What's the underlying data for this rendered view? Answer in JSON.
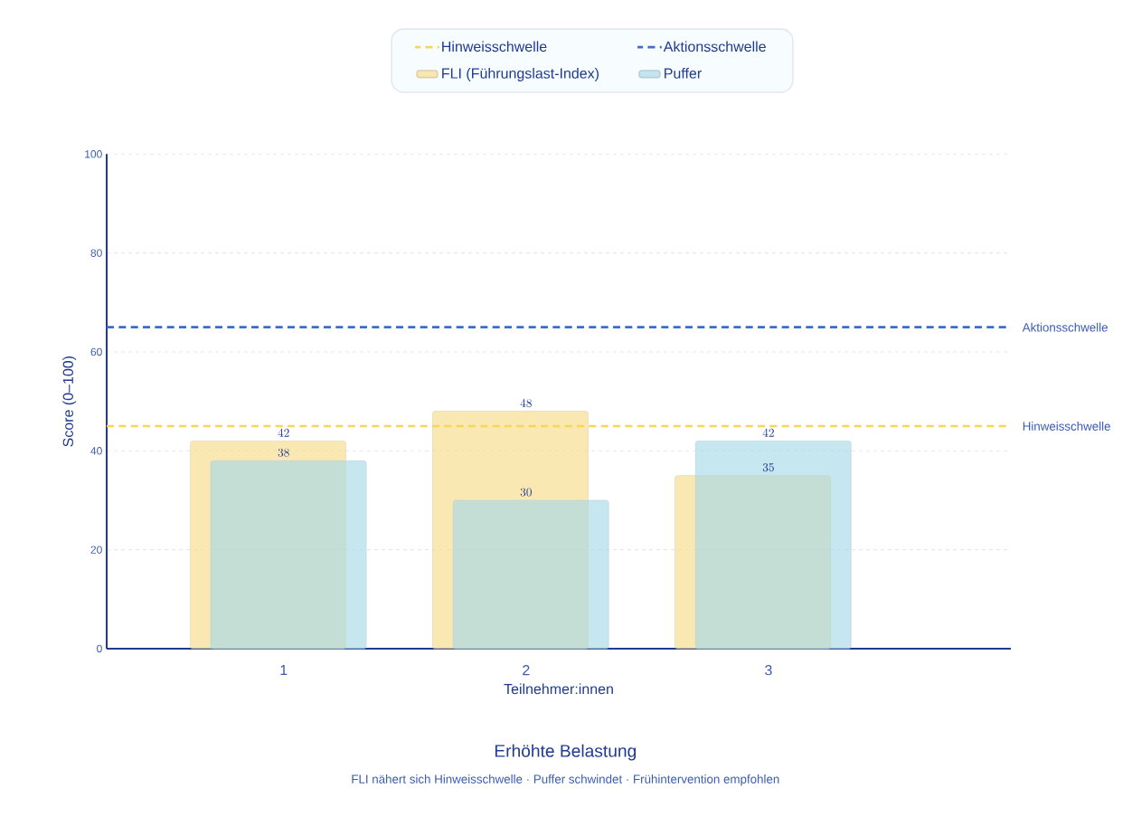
{
  "chart_data": {
    "type": "bar",
    "title": "Erhöhte Belastung",
    "subtitle": "FLI nähert sich Hinweisschwelle · Puffer schwindet · Frühintervention empfohlen",
    "xlabel": "Teilnehmer:innen",
    "ylabel": "Score (0–100)",
    "categories": [
      "1",
      "2",
      "3"
    ],
    "series": [
      {
        "name": "FLI (Führungslast-Index)",
        "color": "#f7dc8a",
        "values": [
          42,
          48,
          35
        ]
      },
      {
        "name": "Puffer",
        "color": "#a8d9e8",
        "values": [
          38,
          30,
          42
        ]
      }
    ],
    "ylim": [
      0,
      100
    ],
    "yticks": [
      0,
      20,
      40,
      60,
      80,
      100
    ],
    "grid": "y",
    "legend": "top",
    "data_labels": true,
    "ref_lines": [
      {
        "axis": "y",
        "value": 45,
        "label": "Hinweisschwelle",
        "color": "#f2d660",
        "line_style": "dashed"
      },
      {
        "axis": "y",
        "value": 65,
        "label": "Aktionsschwelle",
        "color": "#3d6cc9",
        "line_style": "dashed"
      }
    ]
  }
}
